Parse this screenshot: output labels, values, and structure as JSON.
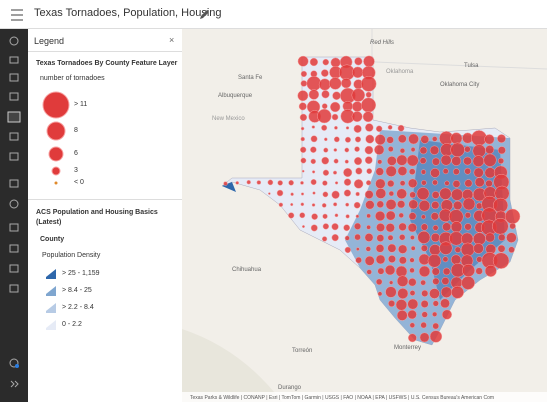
{
  "header": {
    "title": "Texas Tornadoes, Population, Housing"
  },
  "legend": {
    "title": "Legend",
    "layers": [
      {
        "title": "Texas Tornadoes By County Feature Layer",
        "field": "number of tornadoes",
        "items": [
          "> 11",
          "8",
          "6",
          "3",
          "< 0"
        ]
      },
      {
        "title": "ACS Population and Housing Basics (Latest)",
        "sublayer": "County",
        "field": "Population Density",
        "items": [
          "> 25 - 1,159",
          "> 8.4 - 25",
          "> 2.2 - 8.4",
          "0 - 2.2"
        ]
      }
    ]
  },
  "map": {
    "labels": [
      "Red Hills",
      "Santa Fe",
      "Oklahoma",
      "Tulsa",
      "Albuquerque",
      "Oklahoma City",
      "New Mexico",
      "Chihuahua",
      "Torreón",
      "Monterrey",
      "Durango"
    ],
    "attribution": "Texas Parks & Wildlife | CONANP | Esri | TomTom | Garmin | USGS | FAO | NOAA | EPA | USFWS | U.S. Census Bureau's American Com"
  }
}
